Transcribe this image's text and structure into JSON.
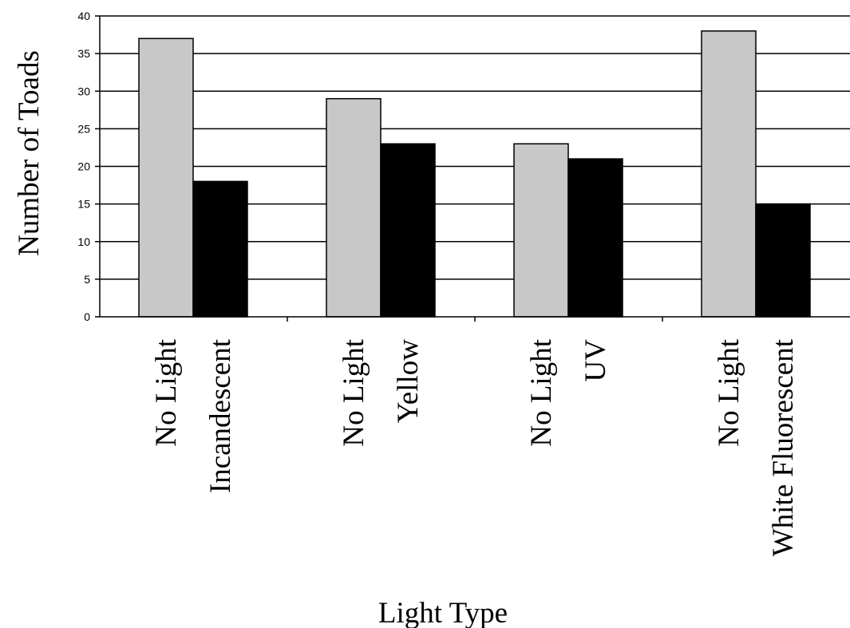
{
  "chart_data": {
    "type": "bar",
    "xlabel": "Light Type",
    "ylabel": "Number of Toads",
    "ylim": [
      0,
      40
    ],
    "yticks": [
      0,
      5,
      10,
      15,
      20,
      25,
      30,
      35,
      40
    ],
    "grid": true,
    "groups": [
      {
        "bars": [
          {
            "label": "No Light",
            "value": 37,
            "color": "#c8c8c8"
          },
          {
            "label": "Incandescent",
            "value": 18,
            "color": "#000000"
          }
        ]
      },
      {
        "bars": [
          {
            "label": "No Light",
            "value": 29,
            "color": "#c8c8c8"
          },
          {
            "label": "Yellow",
            "value": 23,
            "color": "#000000"
          }
        ]
      },
      {
        "bars": [
          {
            "label": "No Light",
            "value": 23,
            "color": "#c8c8c8"
          },
          {
            "label": "UV",
            "value": 21,
            "color": "#000000"
          }
        ]
      },
      {
        "bars": [
          {
            "label": "No Light",
            "value": 38,
            "color": "#c8c8c8"
          },
          {
            "label": "White Fluorescent",
            "value": 15,
            "color": "#000000"
          }
        ]
      }
    ]
  }
}
